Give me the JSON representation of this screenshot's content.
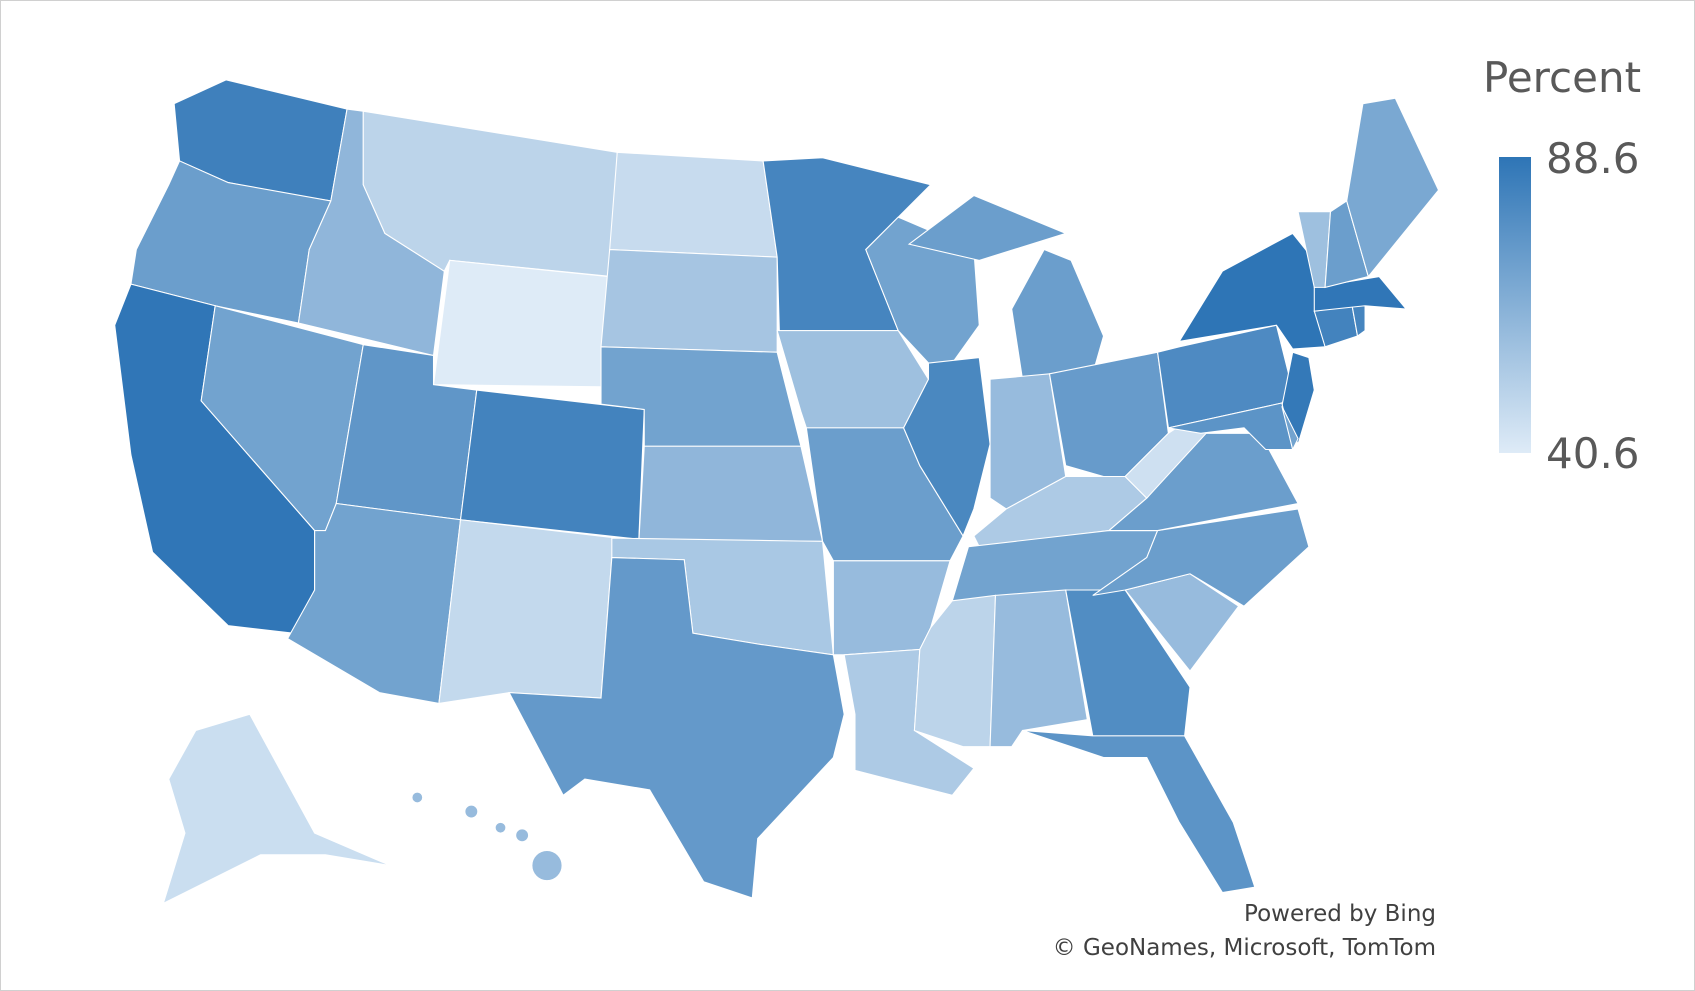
{
  "legend": {
    "title": "Percent",
    "max_label": "88.6",
    "min_label": "40.6",
    "max": 88.6,
    "min": 40.6
  },
  "colors": {
    "high": "#2E75B6",
    "low": "#DEEBF7",
    "border": "#FFFFFF"
  },
  "credits": {
    "powered": "Powered by Bing",
    "copyright": "© GeoNames, Microsoft, TomTom"
  },
  "chart_data": {
    "type": "choropleth",
    "region": "United States",
    "legend_title": "Percent",
    "range": [
      40.6,
      88.6
    ],
    "legend_placement": "top-right",
    "states": {
      "WA": 84,
      "OR": 72,
      "CA": 88,
      "NV": 70,
      "ID": 62,
      "MT": 50,
      "WY": 40.6,
      "UT": 75,
      "CO": 83,
      "AZ": 70,
      "NM": 48,
      "ND": 47,
      "SD": 56,
      "NE": 70,
      "KS": 62,
      "OK": 55,
      "TX": 74,
      "MN": 82,
      "IA": 58,
      "MO": 72,
      "AR": 60,
      "LA": 54,
      "WI": 70,
      "IL": 81,
      "MI": 72,
      "IN": 60,
      "OH": 73,
      "KY": 54,
      "TN": 70,
      "MS": 50,
      "AL": 60,
      "GA": 79,
      "FL": 76,
      "SC": 60,
      "NC": 72,
      "VA": 72,
      "WV": 45,
      "PA": 80,
      "NY": 88.6,
      "NJ": 87,
      "MD": 76,
      "DE": 70,
      "CT": 83,
      "RI": 82,
      "MA": 88,
      "VT": 58,
      "NH": 72,
      "ME": 68,
      "AK": 46,
      "HI": 60
    }
  }
}
